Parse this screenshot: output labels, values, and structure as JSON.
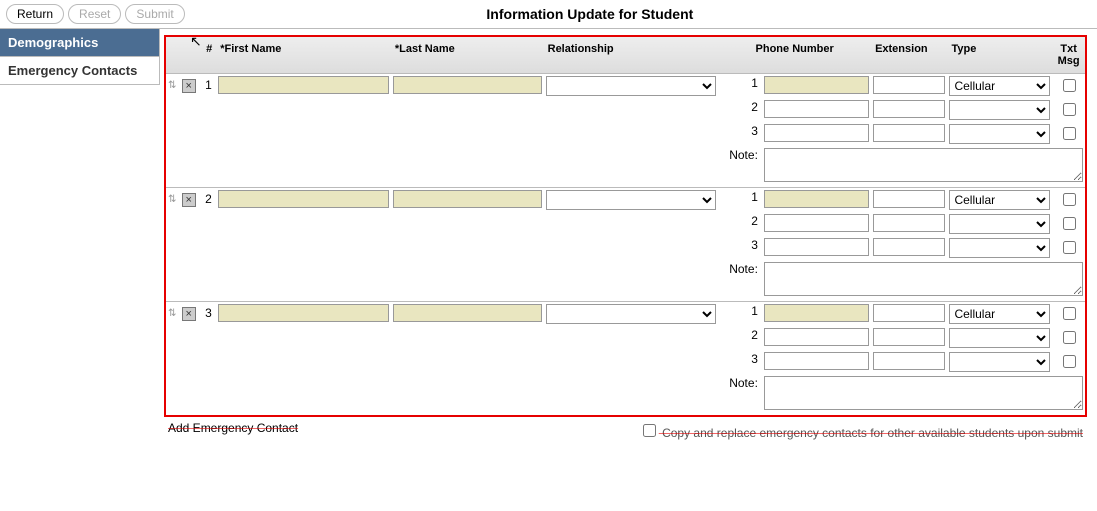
{
  "header": {
    "return_label": "Return",
    "reset_label": "Reset",
    "submit_label": "Submit",
    "title": "Information Update for Student"
  },
  "sidebar": {
    "items": [
      {
        "label": "Demographics",
        "active": true
      },
      {
        "label": "Emergency Contacts",
        "active": false
      }
    ]
  },
  "table": {
    "headers": {
      "num": "#",
      "first": "*First Name",
      "last": "*Last Name",
      "rel": "Relationship",
      "phone": "Phone Number",
      "ext": "Extension",
      "type": "Type",
      "txt": "Txt Msg"
    },
    "note_label": "Note:",
    "type_default": "Cellular",
    "contacts": [
      {
        "idx": "1",
        "first": "",
        "last": "",
        "rel": "",
        "phones": [
          {
            "num": "1",
            "phone": "",
            "ext": "",
            "type": "Cellular",
            "txt": false
          },
          {
            "num": "2",
            "phone": "",
            "ext": "",
            "type": "",
            "txt": false
          },
          {
            "num": "3",
            "phone": "",
            "ext": "",
            "type": "",
            "txt": false
          }
        ],
        "note": ""
      },
      {
        "idx": "2",
        "first": "",
        "last": "",
        "rel": "",
        "phones": [
          {
            "num": "1",
            "phone": "",
            "ext": "",
            "type": "Cellular",
            "txt": false
          },
          {
            "num": "2",
            "phone": "",
            "ext": "",
            "type": "",
            "txt": false
          },
          {
            "num": "3",
            "phone": "",
            "ext": "",
            "type": "",
            "txt": false
          }
        ],
        "note": ""
      },
      {
        "idx": "3",
        "first": "",
        "last": "",
        "rel": "",
        "phones": [
          {
            "num": "1",
            "phone": "",
            "ext": "",
            "type": "Cellular",
            "txt": false
          },
          {
            "num": "2",
            "phone": "",
            "ext": "",
            "type": "",
            "txt": false
          },
          {
            "num": "3",
            "phone": "",
            "ext": "",
            "type": "",
            "txt": false
          }
        ],
        "note": ""
      }
    ]
  },
  "footer": {
    "add_link": "Add Emergency Contact",
    "copy_label": "Copy and replace emergency contacts for other available students upon submit"
  },
  "colors": {
    "sidebar_active_bg": "#4b6d92",
    "highlight_border": "#e60000",
    "yellow_input": "#e9e6c0"
  }
}
